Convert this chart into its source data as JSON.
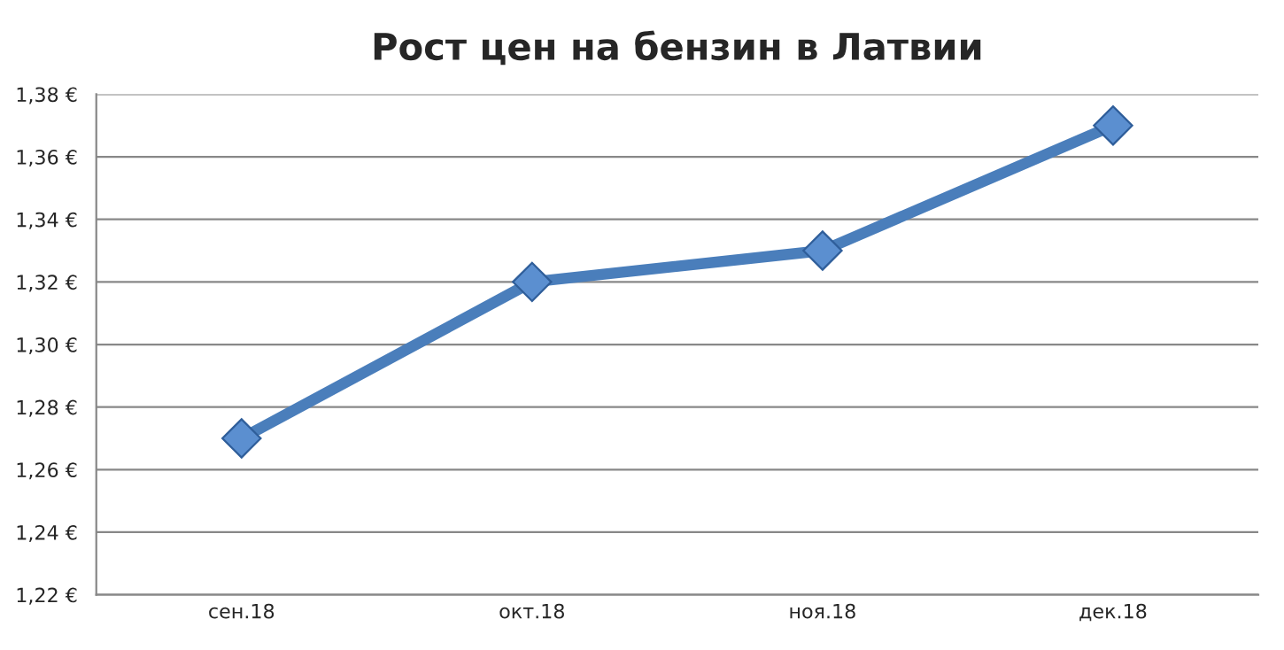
{
  "chart_data": {
    "type": "line",
    "title": "Рост цен на бензин в Латвии",
    "categories": [
      "сен.18",
      "окт.18",
      "ноя.18",
      "дек.18"
    ],
    "series": [
      {
        "color": "#4a7ebb",
        "values": [
          1.27,
          1.32,
          1.33,
          1.37
        ]
      }
    ],
    "ylim": [
      1.22,
      1.38
    ],
    "yticks": [
      {
        "value": 1.22,
        "label": "1,22 €"
      },
      {
        "value": 1.24,
        "label": "1,24 €"
      },
      {
        "value": 1.26,
        "label": "1,26 €"
      },
      {
        "value": 1.28,
        "label": "1,28 €"
      },
      {
        "value": 1.3,
        "label": "1,30 €"
      },
      {
        "value": 1.32,
        "label": "1,32 €"
      },
      {
        "value": 1.34,
        "label": "1,34 €"
      },
      {
        "value": 1.36,
        "label": "1,36 €"
      },
      {
        "value": 1.38,
        "label": "1,38 €"
      }
    ],
    "grid": "y",
    "marker": "diamond",
    "line_style": "solid"
  }
}
